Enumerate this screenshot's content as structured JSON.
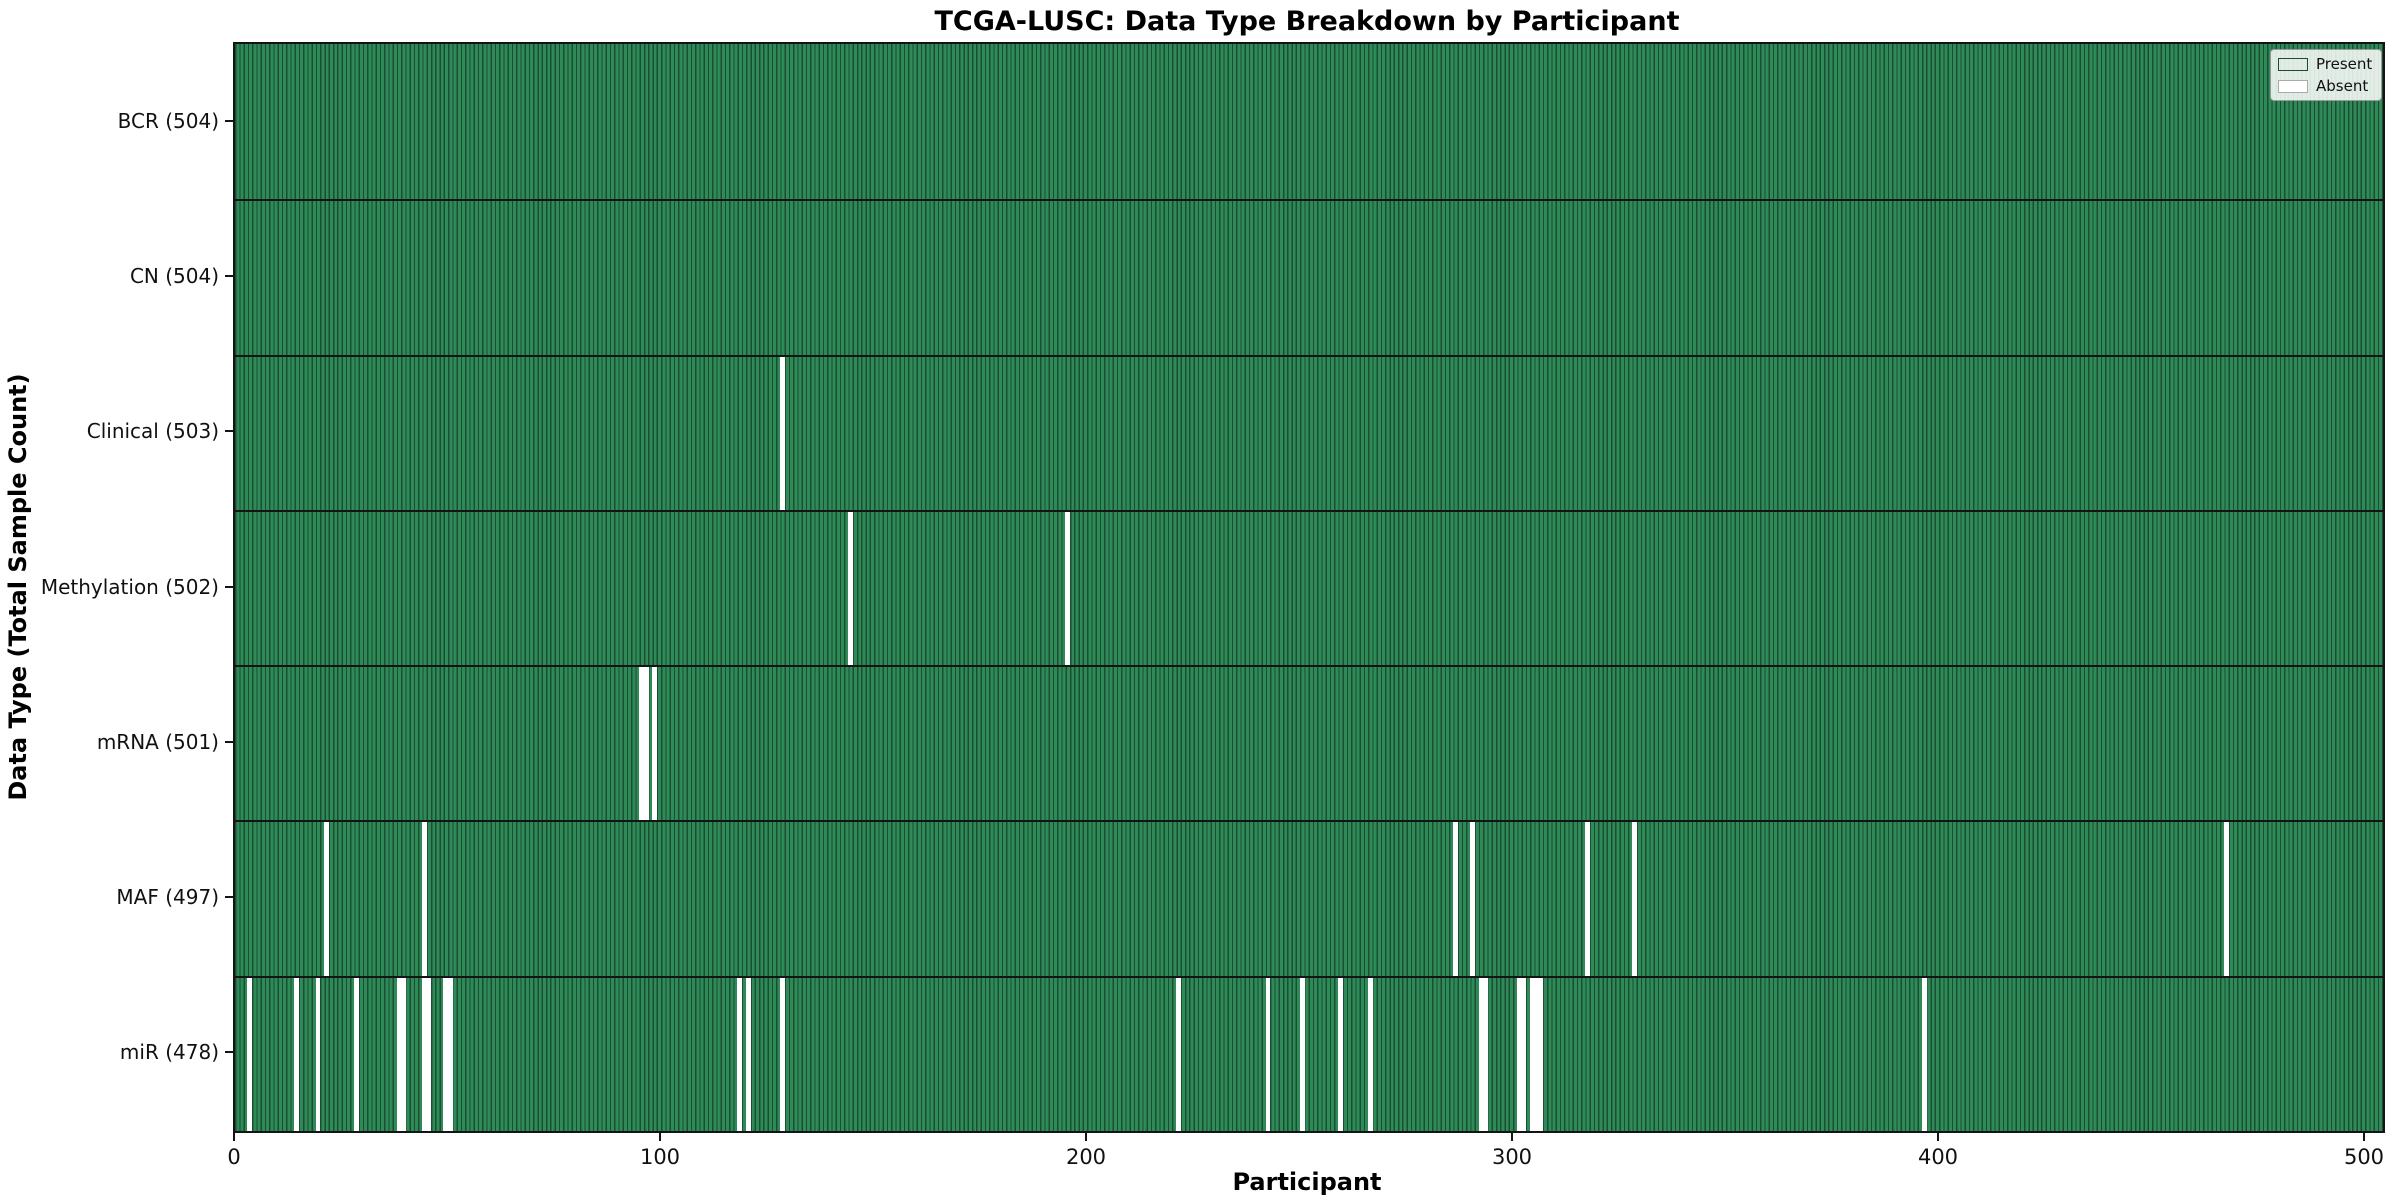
{
  "title": "TCGA-LUSC: Data Type Breakdown by Participant",
  "colors": {
    "present_fill": "#2e8b57",
    "present_edge": "#1b4d33",
    "absent_fill": "#ffffff",
    "separator": "#141414"
  },
  "chart_data": {
    "type": "heatmap",
    "title": "TCGA-LUSC: Data Type Breakdown by Participant",
    "xlabel": "Participant",
    "ylabel": "Data Type (Total Sample Count)",
    "x_ticks": [
      0,
      100,
      200,
      300,
      400,
      500
    ],
    "xlim": [
      0,
      505
    ],
    "n_participants": 504,
    "grid": false,
    "legend": [
      "Present",
      "Absent"
    ],
    "legend_position": "upper right",
    "cell_states": {
      "present": 1,
      "absent": 0
    },
    "rows": [
      {
        "label": "BCR (504)",
        "name": "BCR",
        "total": 504,
        "absent_participants": []
      },
      {
        "label": "CN (504)",
        "name": "CN",
        "total": 504,
        "absent_participants": []
      },
      {
        "label": "Clinical (503)",
        "name": "Clinical",
        "total": 503,
        "absent_participants": [
          128
        ]
      },
      {
        "label": "Methylation (502)",
        "name": "Methylation",
        "total": 502,
        "absent_participants": [
          144,
          195
        ]
      },
      {
        "label": "mRNA (501)",
        "name": "mRNA",
        "total": 501,
        "absent_participants": [
          95,
          96,
          98
        ]
      },
      {
        "label": "MAF (497)",
        "name": "MAF",
        "total": 497,
        "absent_participants": [
          21,
          44,
          286,
          290,
          317,
          328,
          467
        ]
      },
      {
        "label": "miR (478)",
        "name": "miR",
        "total": 478,
        "absent_participants": [
          3,
          14,
          19,
          28,
          38,
          39,
          44,
          45,
          49,
          50,
          118,
          120,
          128,
          221,
          242,
          250,
          259,
          266,
          292,
          293,
          301,
          302,
          304,
          305,
          306,
          396
        ]
      }
    ]
  },
  "legend": {
    "present_label": "Present",
    "absent_label": "Absent"
  }
}
